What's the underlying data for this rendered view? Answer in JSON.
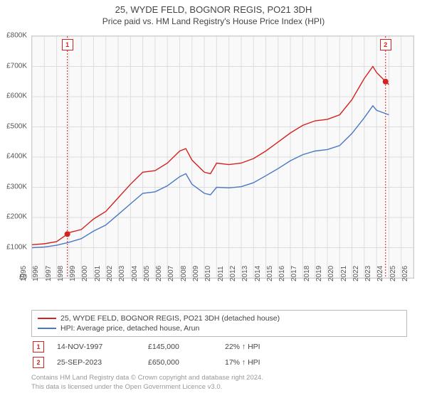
{
  "title": "25, WYDE FELD, BOGNOR REGIS, PO21 3DH",
  "subtitle": "Price paid vs. HM Land Registry's House Price Index (HPI)",
  "chart": {
    "type": "line",
    "background_color": "#f9f9f9",
    "grid_color": "#dddddd",
    "border_color": "#bbbbbb",
    "x_years": [
      1995,
      1996,
      1997,
      1998,
      1999,
      2000,
      2001,
      2002,
      2003,
      2004,
      2005,
      2006,
      2007,
      2008,
      2009,
      2010,
      2011,
      2012,
      2013,
      2014,
      2015,
      2016,
      2017,
      2018,
      2019,
      2020,
      2021,
      2022,
      2023,
      2024,
      2025,
      2026
    ],
    "y_ticks": [
      0,
      100000,
      200000,
      300000,
      400000,
      500000,
      600000,
      700000,
      800000
    ],
    "y_labels": [
      "£0",
      "£100K",
      "£200K",
      "£300K",
      "£400K",
      "£500K",
      "£600K",
      "£700K",
      "£800K"
    ],
    "y_min": 0,
    "y_max": 800000,
    "series": [
      {
        "name": "property",
        "label": "25, WYDE FELD, BOGNOR REGIS, PO21 3DH (detached house)",
        "color": "#d4221e",
        "line_width": 1.4,
        "points": [
          [
            1995,
            110000
          ],
          [
            1996,
            113000
          ],
          [
            1997,
            120000
          ],
          [
            1997.87,
            145000
          ],
          [
            1998,
            150000
          ],
          [
            1999,
            160000
          ],
          [
            2000,
            195000
          ],
          [
            2001,
            220000
          ],
          [
            2002,
            265000
          ],
          [
            2003,
            310000
          ],
          [
            2004,
            350000
          ],
          [
            2005,
            355000
          ],
          [
            2006,
            380000
          ],
          [
            2007,
            420000
          ],
          [
            2007.5,
            428000
          ],
          [
            2008,
            390000
          ],
          [
            2009,
            350000
          ],
          [
            2009.5,
            345000
          ],
          [
            2010,
            380000
          ],
          [
            2011,
            375000
          ],
          [
            2012,
            380000
          ],
          [
            2013,
            395000
          ],
          [
            2014,
            420000
          ],
          [
            2015,
            450000
          ],
          [
            2016,
            480000
          ],
          [
            2017,
            505000
          ],
          [
            2018,
            520000
          ],
          [
            2019,
            525000
          ],
          [
            2020,
            540000
          ],
          [
            2021,
            590000
          ],
          [
            2022,
            660000
          ],
          [
            2022.7,
            700000
          ],
          [
            2023,
            680000
          ],
          [
            2023.73,
            650000
          ],
          [
            2024,
            640000
          ]
        ]
      },
      {
        "name": "hpi",
        "label": "HPI: Average price, detached house, Arun",
        "color": "#4a78c4",
        "line_width": 1.4,
        "points": [
          [
            1995,
            100000
          ],
          [
            1996,
            102000
          ],
          [
            1997,
            108000
          ],
          [
            1998,
            118000
          ],
          [
            1999,
            130000
          ],
          [
            2000,
            155000
          ],
          [
            2001,
            175000
          ],
          [
            2002,
            210000
          ],
          [
            2003,
            245000
          ],
          [
            2004,
            280000
          ],
          [
            2005,
            285000
          ],
          [
            2006,
            305000
          ],
          [
            2007,
            335000
          ],
          [
            2007.5,
            345000
          ],
          [
            2008,
            310000
          ],
          [
            2009,
            280000
          ],
          [
            2009.5,
            275000
          ],
          [
            2010,
            300000
          ],
          [
            2011,
            298000
          ],
          [
            2012,
            302000
          ],
          [
            2013,
            315000
          ],
          [
            2014,
            338000
          ],
          [
            2015,
            362000
          ],
          [
            2016,
            388000
          ],
          [
            2017,
            408000
          ],
          [
            2018,
            420000
          ],
          [
            2019,
            425000
          ],
          [
            2020,
            438000
          ],
          [
            2021,
            478000
          ],
          [
            2022,
            530000
          ],
          [
            2022.7,
            570000
          ],
          [
            2023,
            555000
          ],
          [
            2024,
            540000
          ]
        ]
      }
    ],
    "sale_points": [
      {
        "id": "1",
        "year": 1997.87,
        "value": 145000,
        "color": "#d4221e"
      },
      {
        "id": "2",
        "year": 2023.73,
        "value": 650000,
        "color": "#d4221e"
      }
    ]
  },
  "legend": {
    "items": [
      {
        "color": "#d4221e",
        "label": "25, WYDE FELD, BOGNOR REGIS, PO21 3DH (detached house)"
      },
      {
        "color": "#4a78c4",
        "label": "HPI: Average price, detached house, Arun"
      }
    ]
  },
  "sales": [
    {
      "marker": "1",
      "marker_color": "#d4221e",
      "date": "14-NOV-1997",
      "price": "£145,000",
      "delta": "22% ↑ HPI"
    },
    {
      "marker": "2",
      "marker_color": "#d4221e",
      "date": "25-SEP-2023",
      "price": "£650,000",
      "delta": "17% ↑ HPI"
    }
  ],
  "copyright": {
    "line1": "Contains HM Land Registry data © Crown copyright and database right 2024.",
    "line2": "This data is licensed under the Open Government Licence v3.0."
  }
}
